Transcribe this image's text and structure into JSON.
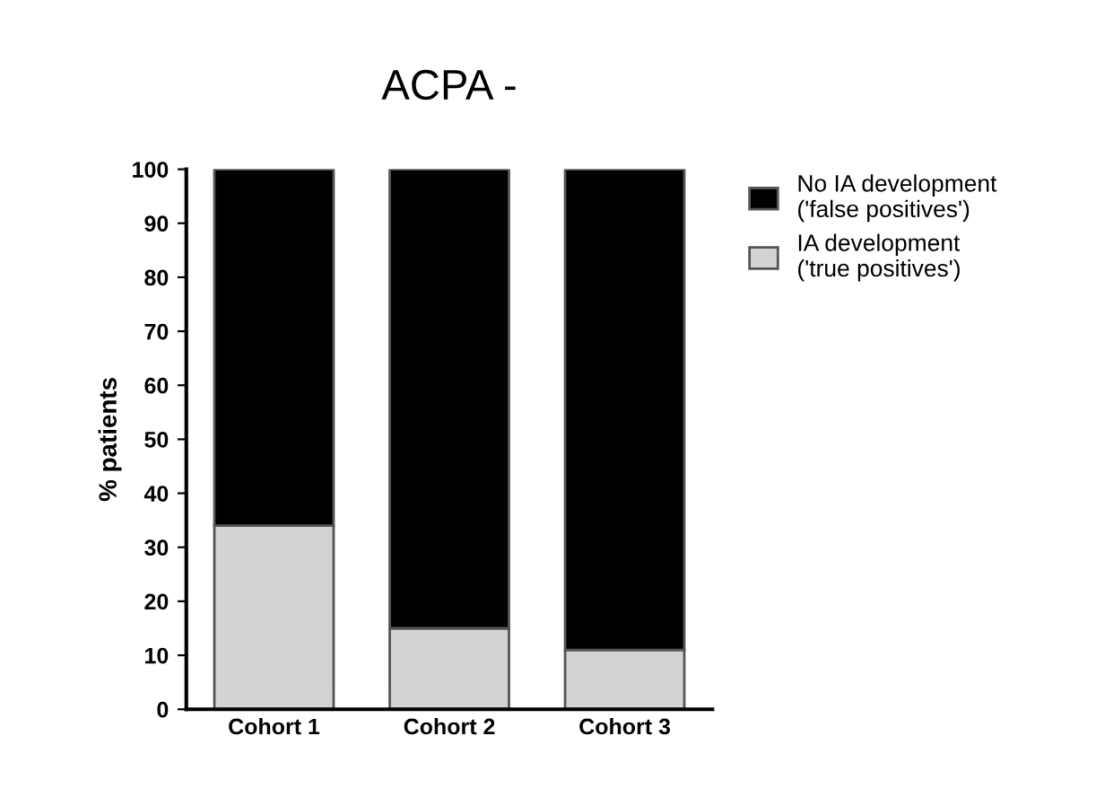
{
  "chart_data": {
    "type": "bar",
    "title": "ACPA -",
    "ylabel": "% patients",
    "categories": [
      "Cohort 1",
      "Cohort 2",
      "Cohort 3"
    ],
    "stacked": true,
    "series": [
      {
        "name": "IA development\n('true positives')",
        "color": "#d3d3d3",
        "values": [
          34,
          15,
          11
        ]
      },
      {
        "name": "No IA development\n('false positives')",
        "color": "#000000",
        "values": [
          66,
          85,
          89
        ]
      }
    ],
    "ylim": [
      0,
      100
    ],
    "yticks": [
      0,
      10,
      20,
      30,
      40,
      50,
      60,
      70,
      80,
      90,
      100
    ],
    "grid": false,
    "legend": "top right"
  }
}
